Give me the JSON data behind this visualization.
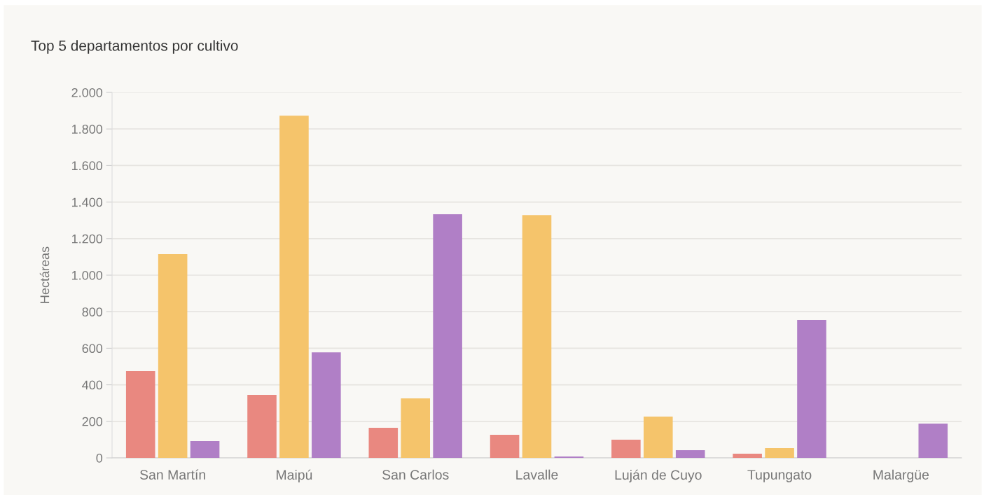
{
  "chart_data": {
    "type": "bar",
    "title": "Top 5 departamentos por cultivo",
    "ylabel": "Hectáreas",
    "categories": [
      "San Martín",
      "Maipú",
      "San Carlos",
      "Lavalle",
      "Luján de Cuyo",
      "Tupungato",
      "Malargüe"
    ],
    "series": [
      {
        "color": "#e98880",
        "values": [
          475,
          345,
          165,
          126,
          100,
          23,
          null
        ]
      },
      {
        "color": "#f5c46b",
        "values": [
          1115,
          1873,
          326,
          1329,
          226,
          54,
          null
        ]
      },
      {
        "color": "#b07fc6",
        "values": [
          92,
          578,
          1333,
          8,
          42,
          755,
          188
        ]
      }
    ],
    "ylim": [
      0,
      2000
    ],
    "yticks": [
      0,
      {
        "value": 200,
        "label": "200"
      },
      {
        "value": 400,
        "label": "400"
      },
      {
        "value": 600,
        "label": "600"
      },
      {
        "value": 800,
        "label": "800"
      },
      {
        "value": 1000,
        "label": "1.000"
      },
      {
        "value": 1200,
        "label": "1.200"
      },
      {
        "value": 1400,
        "label": "1.400"
      },
      {
        "value": 1600,
        "label": "1.600"
      },
      {
        "value": 1800,
        "label": "1.800"
      },
      {
        "value": 2000,
        "label": "2.000"
      }
    ],
    "grid": "y",
    "legend": false
  }
}
